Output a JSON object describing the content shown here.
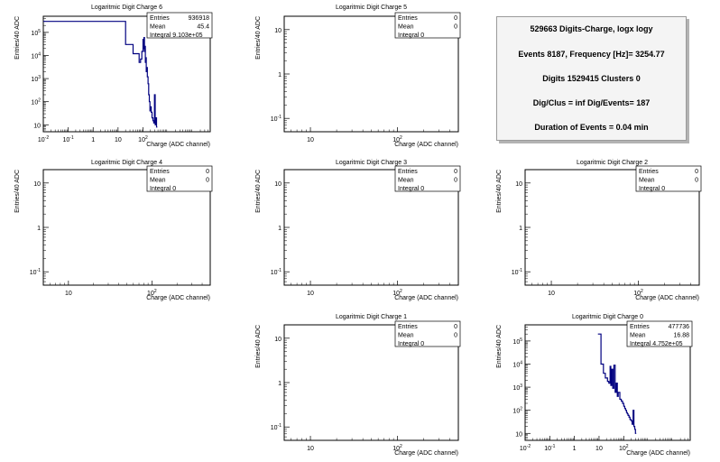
{
  "layout": {
    "xlabel": "Charge (ADC channel)",
    "ylabel": "Entries/40 ADC"
  },
  "stats_labels": [
    "Entries",
    "Mean",
    "Integral"
  ],
  "info": {
    "line1": "529663 Digits-Charge, logx logy",
    "line2": "Events 8187, Frequency [Hz]= 3254.77",
    "line3": "Digits 1529415 Clusters 0",
    "line4": "Dig/Clus = inf Dig/Events= 187",
    "line5": "Duration of Events = 0.04 min"
  },
  "chart_data": [
    {
      "type": "line",
      "title": "Logaritmic Digit Charge 6",
      "xlabel": "Charge (ADC channel)",
      "ylabel": "Entries/40 ADC",
      "xscale": "log",
      "yscale": "log",
      "xlim": [
        0.01,
        50000
      ],
      "ylim": [
        5,
        500000
      ],
      "xticks": [
        "10^-2",
        "10^-1",
        "1",
        "10",
        "10^2"
      ],
      "yticks": [
        "10",
        "10^2",
        "10^3",
        "10^4",
        "10^5"
      ],
      "stats": {
        "entries": "936918",
        "mean": "45.4",
        "integral": "9.103e+05"
      },
      "color": "#000080",
      "x": [
        0.01,
        20,
        40,
        60,
        70,
        80,
        90,
        100,
        105,
        110,
        115,
        120,
        125,
        130,
        135,
        140,
        150,
        160,
        170,
        180,
        190,
        200,
        215,
        230,
        250,
        270,
        290,
        310,
        330,
        350
      ],
      "values": [
        300000,
        30000,
        12000,
        12000,
        5000,
        7000,
        15000,
        50000,
        20000,
        60000,
        15000,
        25000,
        5000,
        8000,
        2000,
        3000,
        1200,
        600,
        200,
        100,
        40,
        60,
        35,
        20,
        15,
        12,
        200,
        10,
        20,
        8
      ]
    },
    {
      "type": "line",
      "title": "Logaritmic Digit Charge 5",
      "xlabel": "Charge (ADC channel)",
      "ylabel": "Entries/40 ADC",
      "xscale": "log",
      "yscale": "log",
      "xlim": [
        5,
        500
      ],
      "ylim": [
        0.05,
        20
      ],
      "xticks": [
        "10",
        "10^2"
      ],
      "yticks": [
        "10^-1",
        "1",
        "10"
      ],
      "stats": {
        "entries": "0",
        "mean": "0",
        "integral": "0"
      }
    },
    {
      "type": "line",
      "title": "Logaritmic Digit Charge 4",
      "xlabel": "Charge (ADC channel)",
      "ylabel": "Entries/40 ADC",
      "xscale": "log",
      "yscale": "log",
      "xlim": [
        5,
        500
      ],
      "ylim": [
        0.05,
        20
      ],
      "xticks": [
        "10",
        "10^2"
      ],
      "yticks": [
        "10^-1",
        "1",
        "10"
      ],
      "stats": {
        "entries": "0",
        "mean": "0",
        "integral": "0"
      }
    },
    {
      "type": "line",
      "title": "Logaritmic Digit Charge 3",
      "xlabel": "Charge (ADC channel)",
      "ylabel": "Entries/40 ADC",
      "xscale": "log",
      "yscale": "log",
      "xlim": [
        5,
        500
      ],
      "ylim": [
        0.05,
        20
      ],
      "xticks": [
        "10",
        "10^2"
      ],
      "yticks": [
        "10^-1",
        "1",
        "10"
      ],
      "stats": {
        "entries": "0",
        "mean": "0",
        "integral": "0"
      }
    },
    {
      "type": "line",
      "title": "Logaritmic Digit Charge 2",
      "xlabel": "Charge (ADC channel)",
      "ylabel": "Entries/40 ADC",
      "xscale": "log",
      "yscale": "log",
      "xlim": [
        5,
        500
      ],
      "ylim": [
        0.05,
        20
      ],
      "xticks": [
        "10",
        "10^2"
      ],
      "yticks": [
        "10^-1",
        "1",
        "10"
      ],
      "stats": {
        "entries": "0",
        "mean": "0",
        "integral": "0"
      }
    },
    {
      "type": "line",
      "title": "Logaritmic Digit Charge 1",
      "xlabel": "Charge (ADC channel)",
      "ylabel": "Entries/40 ADC",
      "xscale": "log",
      "yscale": "log",
      "xlim": [
        5,
        500
      ],
      "ylim": [
        0.05,
        20
      ],
      "xticks": [
        "10",
        "10^2"
      ],
      "yticks": [
        "10^-1",
        "1",
        "10"
      ],
      "stats": {
        "entries": "0",
        "mean": "0",
        "integral": "0"
      }
    },
    {
      "type": "line",
      "title": "Logaritmic Digit Charge 0",
      "xlabel": "Charge (ADC channel)",
      "ylabel": "Entries/40 ADC",
      "xscale": "log",
      "yscale": "log",
      "xlim": [
        0.01,
        50000
      ],
      "ylim": [
        5,
        500000
      ],
      "xticks": [
        "10^-2",
        "10^-1",
        "1",
        "10",
        "10^2"
      ],
      "yticks": [
        "10",
        "10^2",
        "10^3",
        "10^4",
        "10^5"
      ],
      "stats": {
        "entries": "477736",
        "mean": "16.88",
        "integral": "4.752e+05"
      },
      "color": "#000080",
      "x": [
        9,
        12,
        15,
        18,
        20,
        22,
        25,
        28,
        30,
        33,
        36,
        40,
        45,
        50,
        55,
        60,
        70,
        80,
        90,
        100,
        110,
        120,
        130,
        140,
        150,
        165,
        180,
        200,
        220,
        240,
        260,
        280,
        300
      ],
      "values": [
        200000,
        10000,
        4000,
        2500,
        2500,
        1800,
        1500,
        8000,
        1200,
        6000,
        900,
        9000,
        600,
        1500,
        400,
        600,
        300,
        250,
        200,
        150,
        120,
        100,
        80,
        70,
        60,
        50,
        40,
        35,
        25,
        100,
        20,
        15,
        10
      ]
    }
  ]
}
